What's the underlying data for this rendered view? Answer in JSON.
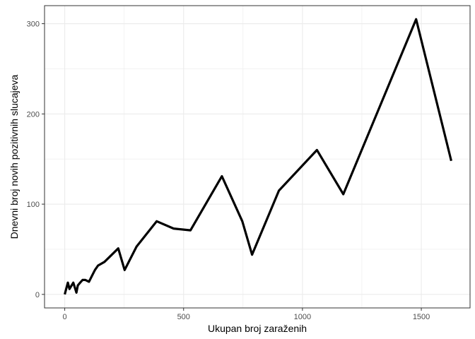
{
  "chart_data": {
    "type": "line",
    "title": "",
    "xlabel": "Ukupan broj zaraženih",
    "ylabel": "Dnevni broj novih pozitivnih slucajeva",
    "xlim": [
      -85,
      1705
    ],
    "ylim": [
      -15,
      320
    ],
    "xticks": [
      0,
      500,
      1000,
      1500
    ],
    "yticks": [
      0,
      100,
      200,
      300
    ],
    "grid": true,
    "legend": "none",
    "colors": {
      "line": "#000000",
      "grid": "#ebebeb",
      "panel_border": "#333333",
      "tick_label": "#4d4d4d"
    },
    "series": [
      {
        "x": [
          0,
          3,
          13,
          20,
          36,
          49,
          55,
          65,
          75,
          87,
          102,
          127,
          140,
          167,
          225,
          252,
          302,
          387,
          458,
          529,
          661,
          747,
          788,
          901,
          1061,
          1172,
          1478,
          1626
        ],
        "y": [
          0,
          3,
          13,
          6,
          13,
          2,
          10,
          13,
          16,
          16,
          14,
          27,
          32,
          36,
          51,
          27,
          53,
          81,
          73,
          71,
          131,
          81,
          44,
          115,
          160,
          111,
          305,
          148
        ]
      }
    ]
  }
}
